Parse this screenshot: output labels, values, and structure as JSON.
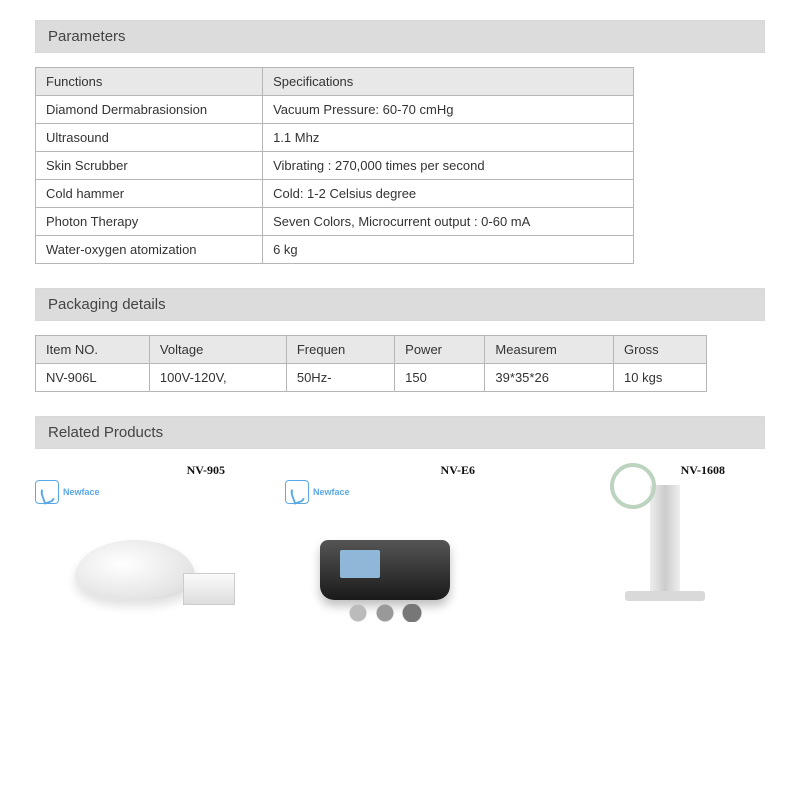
{
  "sections": {
    "parameters_title": "Parameters",
    "packaging_title": "Packaging details",
    "related_title": "Related Products"
  },
  "parameters": {
    "headers": [
      "Functions",
      "Specifications"
    ],
    "rows": [
      [
        "Diamond Dermabrasionsion",
        "Vacuum Pressure: 60-70 cmHg"
      ],
      [
        "Ultrasound",
        "1.1 Mhz"
      ],
      [
        "Skin Scrubber",
        "Vibrating : 270,000 times per second"
      ],
      [
        "Cold hammer",
        "Cold: 1-2 Celsius degree"
      ],
      [
        "Photon Therapy",
        "Seven Colors, Microcurrent output : 0-60 mA"
      ],
      [
        "Water-oxygen atomization",
        "6 kg"
      ]
    ]
  },
  "packaging": {
    "headers": [
      "Item NO.",
      "Voltage",
      "Frequen",
      "Power",
      "Measurem",
      "Gross"
    ],
    "rows": [
      [
        "NV-906L",
        "100V-120V,",
        "50Hz-",
        "150",
        "39*35*26",
        "10 kgs"
      ]
    ]
  },
  "related": {
    "logo_text": "Newface",
    "products": [
      {
        "model": "NV-905",
        "style": "device-white"
      },
      {
        "model": "NV-E6",
        "style": "device-black"
      },
      {
        "model": "NV-1608",
        "style": "device-stand"
      }
    ]
  },
  "colors": {
    "section_header_bg": "#dcdcdc",
    "table_header_bg": "#e8e8e8",
    "table_border": "#b6b6b6",
    "logo_accent": "#5aa9e6"
  }
}
